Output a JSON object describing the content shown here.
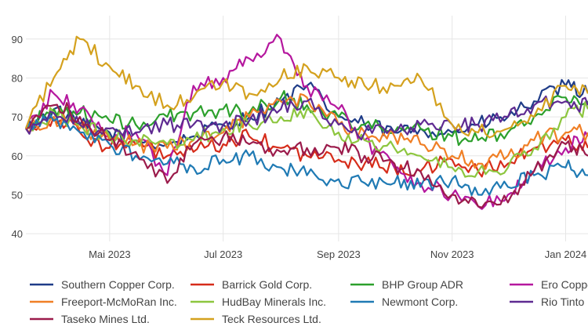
{
  "chart_data": {
    "type": "line",
    "ylim": [
      38,
      96
    ],
    "y_ticks": [
      "40",
      "50",
      "60",
      "70",
      "80",
      "90"
    ],
    "y_tick_values": [
      40,
      50,
      60,
      70,
      80,
      90
    ],
    "x_ticks": [
      "Mai 2023",
      "Jul 2023",
      "Sep 2023",
      "Nov 2023",
      "Jan 2024"
    ],
    "x_tick_values": [
      "2023-05-01",
      "2023-07-01",
      "2023-09-01",
      "2023-11-01",
      "2024-01-01"
    ],
    "x_range": [
      "2023-03-17",
      "2024-01-13"
    ],
    "grid": true,
    "legend_position": "bottom",
    "x": [
      "2023-03-17",
      "2023-04-01",
      "2023-04-15",
      "2023-05-01",
      "2023-05-15",
      "2023-06-01",
      "2023-06-15",
      "2023-07-01",
      "2023-07-15",
      "2023-08-01",
      "2023-08-15",
      "2023-09-01",
      "2023-09-15",
      "2023-10-01",
      "2023-10-15",
      "2023-11-01",
      "2023-11-15",
      "2023-12-01",
      "2023-12-15",
      "2024-01-01",
      "2024-01-13"
    ],
    "series": [
      {
        "name": "Southern Copper Corp.",
        "color": "#1f3c88",
        "values": [
          67,
          72,
          68,
          66,
          64,
          63,
          65,
          68,
          70,
          74,
          78,
          70,
          68,
          66,
          67,
          66,
          68,
          70,
          74,
          78,
          76
        ]
      },
      {
        "name": "Barrick Gold Corp.",
        "color": "#d62c1a",
        "values": [
          67,
          70,
          66,
          62,
          63,
          60,
          61,
          63,
          65,
          62,
          60,
          59,
          58,
          57,
          56,
          59,
          56,
          58,
          62,
          64,
          62
        ]
      },
      {
        "name": "BHP Group ADR",
        "color": "#2ca02c",
        "values": [
          67,
          72,
          71,
          69,
          68,
          70,
          71,
          72,
          71,
          75,
          73,
          70,
          68,
          66,
          67,
          65,
          64,
          66,
          70,
          75,
          74
        ]
      },
      {
        "name": "Ero Copper Corp.",
        "color": "#b5179e",
        "values": [
          67,
          76,
          72,
          65,
          66,
          55,
          78,
          80,
          85,
          90,
          78,
          72,
          64,
          57,
          53,
          50,
          47,
          50,
          56,
          62,
          65
        ]
      },
      {
        "name": "Freeport-McMoRan Inc.",
        "color": "#f07f25",
        "values": [
          67,
          70,
          67,
          64,
          63,
          62,
          64,
          66,
          70,
          74,
          75,
          68,
          66,
          65,
          63,
          60,
          58,
          60,
          64,
          66,
          66
        ]
      },
      {
        "name": "HudBay Minerals Inc.",
        "color": "#8dc63f",
        "values": [
          67,
          71,
          68,
          65,
          64,
          63,
          64,
          67,
          68,
          70,
          72,
          66,
          64,
          62,
          60,
          57,
          56,
          57,
          62,
          70,
          72
        ]
      },
      {
        "name": "Newmont Corp.",
        "color": "#1f7ab4",
        "values": [
          67,
          69,
          66,
          63,
          60,
          58,
          57,
          59,
          60,
          57,
          55,
          54,
          53,
          53,
          52,
          54,
          50,
          52,
          55,
          57,
          55
        ]
      },
      {
        "name": "Rio Tinto Ltd.",
        "color": "#5e2a91",
        "values": [
          67,
          71,
          68,
          67,
          66,
          68,
          68,
          68,
          69,
          72,
          74,
          68,
          66,
          66,
          68,
          68,
          68,
          70,
          73,
          74,
          73
        ]
      },
      {
        "name": "Taseko Mines Ltd.",
        "color": "#9b1b4b",
        "values": [
          67,
          73,
          70,
          64,
          61,
          53,
          63,
          65,
          63,
          61,
          62,
          62,
          60,
          58,
          56,
          50,
          47,
          48,
          56,
          63,
          60
        ]
      },
      {
        "name": "Teck Resources Ltd.",
        "color": "#d4a11e",
        "values": [
          67,
          80,
          90,
          83,
          78,
          73,
          75,
          79,
          76,
          80,
          83,
          80,
          78,
          78,
          80,
          68,
          66,
          67,
          70,
          78,
          76
        ]
      }
    ]
  }
}
